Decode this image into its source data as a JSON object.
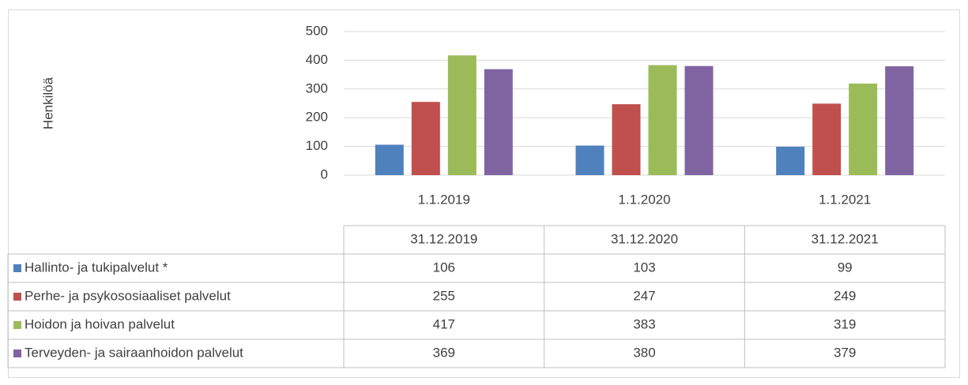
{
  "chart_data": {
    "type": "bar",
    "y_axis_label": "Henkilöä",
    "categories": [
      "1.1.2019",
      "1.1.2020",
      "1.1.2021"
    ],
    "table_headers": [
      "31.12.2019",
      "31.12.2020",
      "31.12.2021"
    ],
    "series": [
      {
        "name": "Hallinto- ja tukipalvelut *",
        "color": "#4f81bd",
        "values": [
          106,
          103,
          99
        ]
      },
      {
        "name": "Perhe- ja psykososiaaliset palvelut",
        "color": "#c0504d",
        "values": [
          255,
          247,
          249
        ]
      },
      {
        "name": "Hoidon ja hoivan palvelut",
        "color": "#9bbb59",
        "values": [
          417,
          383,
          319
        ]
      },
      {
        "name": "Terveyden- ja sairaanhoidon palvelut",
        "color": "#8064a2",
        "values": [
          369,
          380,
          379
        ]
      }
    ],
    "ylim": [
      0,
      500
    ],
    "yticks": [
      0,
      100,
      200,
      300,
      400,
      500
    ],
    "grid": true
  }
}
